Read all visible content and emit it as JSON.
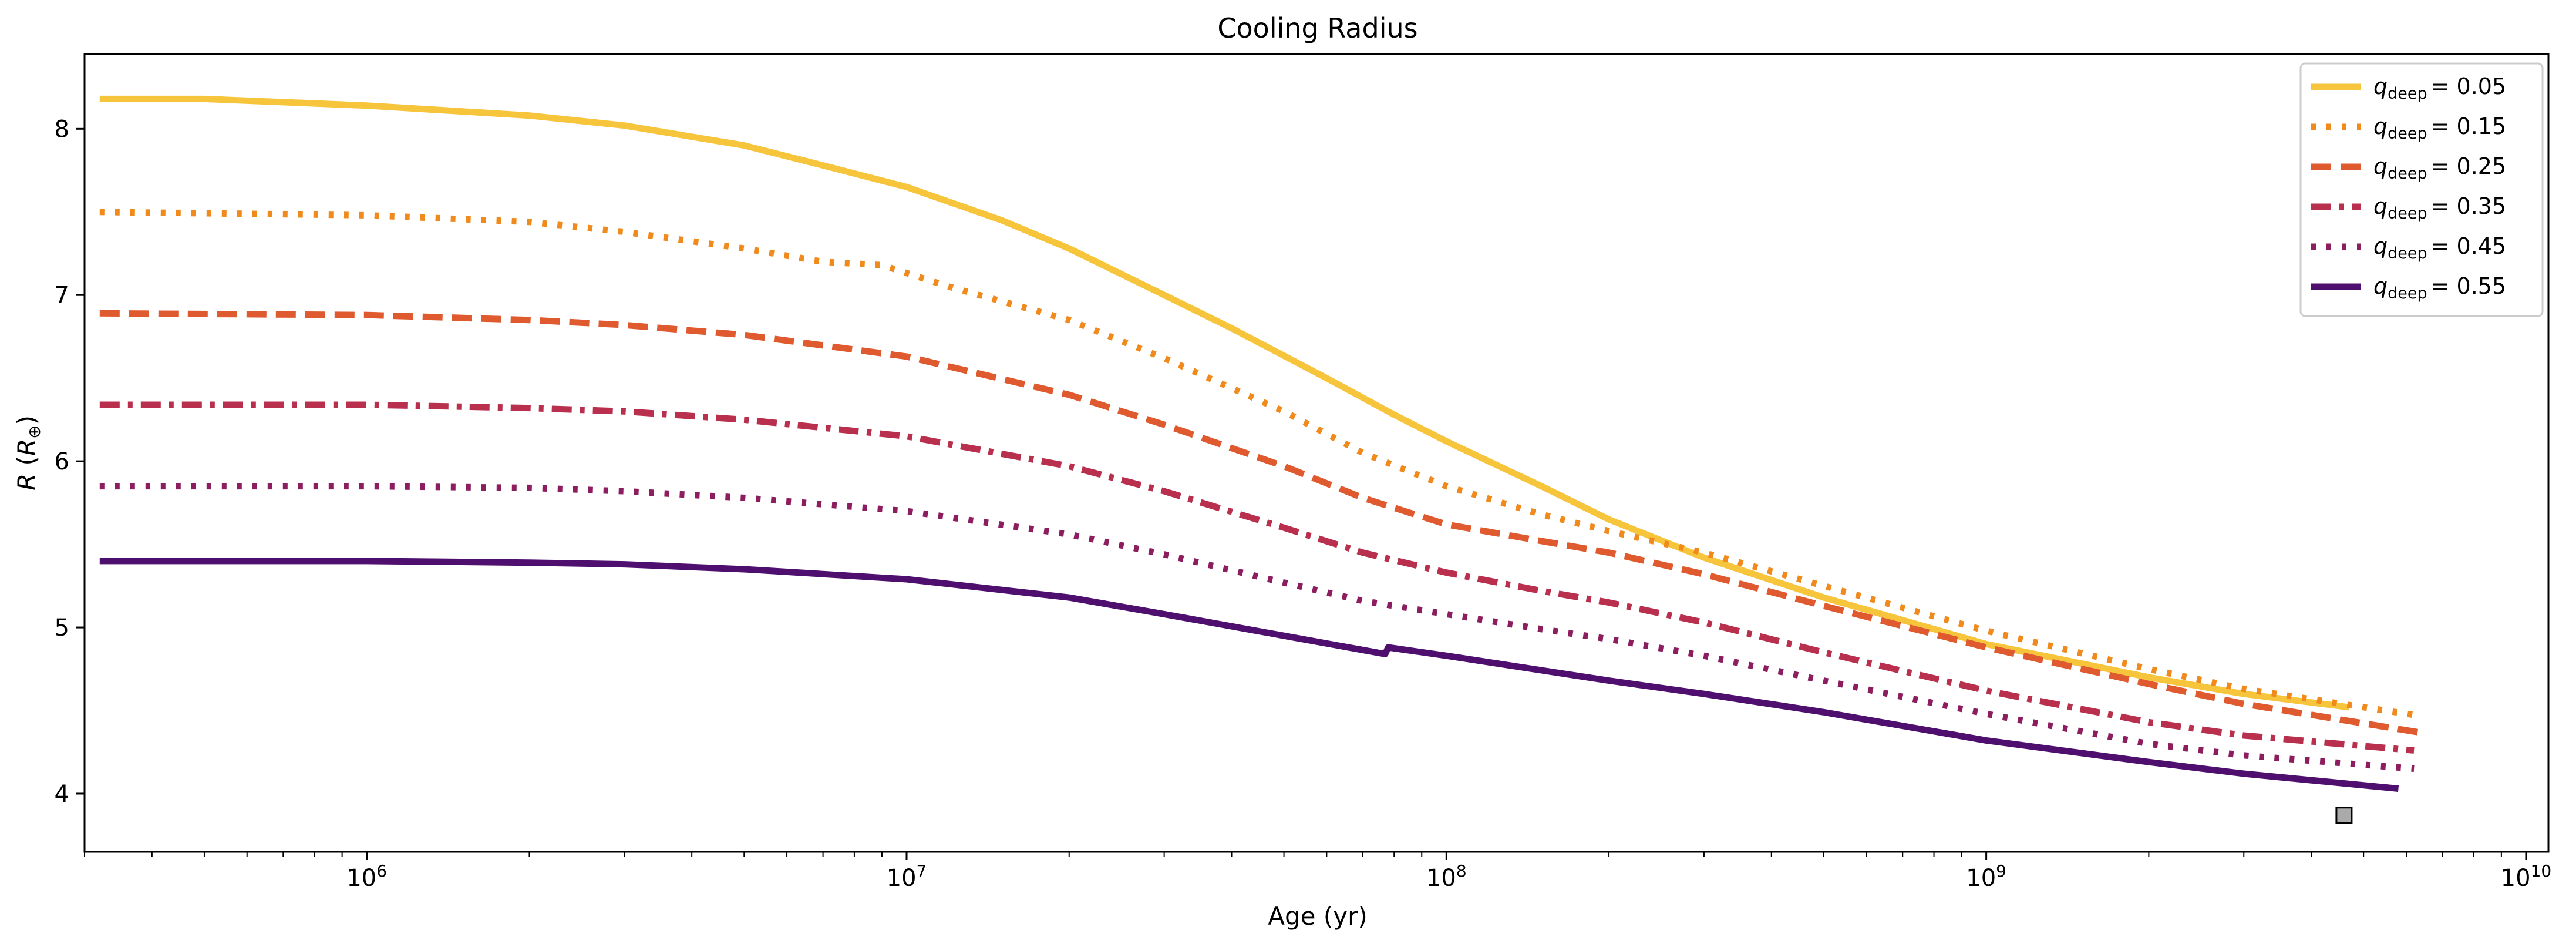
{
  "chart_data": {
    "type": "line",
    "title": "Cooling Radius",
    "xlabel": "Age (yr)",
    "ylabel": {
      "main": "R",
      "unit": "R",
      "unit_sub": "⊕"
    },
    "x_scale": "log",
    "xlim": [
      300000,
      11000000000
    ],
    "ylim": [
      3.65,
      8.45
    ],
    "x_ticks": [
      {
        "value": 1000000,
        "base": "10",
        "exp": "6"
      },
      {
        "value": 10000000,
        "base": "10",
        "exp": "7"
      },
      {
        "value": 100000000,
        "base": "10",
        "exp": "8"
      },
      {
        "value": 1000000000,
        "base": "10",
        "exp": "9"
      },
      {
        "value": 10000000000,
        "base": "10",
        "exp": "10"
      }
    ],
    "y_ticks": [
      {
        "value": 4,
        "label": "4"
      },
      {
        "value": 5,
        "label": "5"
      },
      {
        "value": 6,
        "label": "6"
      },
      {
        "value": 7,
        "label": "7"
      },
      {
        "value": 8,
        "label": "8"
      }
    ],
    "grid": false,
    "legend_position": "top-right",
    "series": [
      {
        "name": "q_deep = 0.05",
        "label_var": "q",
        "label_sub": "deep",
        "label_eq": "= 0.05",
        "color": "#f6c53c",
        "style": "solid",
        "x": [
          320000,
          500000,
          1000000,
          2000000,
          3000000,
          5000000,
          7000000,
          10000000,
          15000000,
          20000000,
          30000000,
          40000000,
          60000000,
          80000000,
          100000000,
          150000000,
          200000000,
          300000000,
          500000000,
          1000000000,
          2000000000,
          3000000000,
          4700000000
        ],
        "y": [
          8.18,
          8.18,
          8.14,
          8.08,
          8.02,
          7.9,
          7.78,
          7.65,
          7.45,
          7.28,
          7.0,
          6.8,
          6.5,
          6.28,
          6.12,
          5.85,
          5.65,
          5.42,
          5.18,
          4.9,
          4.7,
          4.6,
          4.52
        ]
      },
      {
        "name": "q_deep = 0.15",
        "label_var": "q",
        "label_sub": "deep",
        "label_eq": "= 0.15",
        "color": "#f18a1c",
        "style": "dotted",
        "x": [
          320000,
          1000000,
          2000000,
          3000000,
          5000000,
          7000000,
          9000000,
          12000000,
          20000000,
          30000000,
          50000000,
          70000000,
          100000000,
          150000000,
          200000000,
          300000000,
          500000000,
          1000000000,
          2000000000,
          3000000000,
          6300000000
        ],
        "y": [
          7.5,
          7.48,
          7.44,
          7.38,
          7.28,
          7.2,
          7.18,
          7.05,
          6.85,
          6.62,
          6.3,
          6.05,
          5.85,
          5.68,
          5.58,
          5.45,
          5.25,
          4.98,
          4.75,
          4.63,
          4.47
        ]
      },
      {
        "name": "q_deep = 0.25",
        "label_var": "q",
        "label_sub": "deep",
        "label_eq": "= 0.25",
        "color": "#e05a2f",
        "style": "dashed",
        "x": [
          320000,
          1000000,
          2000000,
          3000000,
          5000000,
          10000000,
          20000000,
          30000000,
          50000000,
          70000000,
          100000000,
          150000000,
          200000000,
          300000000,
          500000000,
          1000000000,
          2000000000,
          3000000000,
          6300000000
        ],
        "y": [
          6.89,
          6.88,
          6.85,
          6.82,
          6.76,
          6.63,
          6.4,
          6.22,
          5.97,
          5.78,
          5.62,
          5.52,
          5.45,
          5.32,
          5.13,
          4.88,
          4.66,
          4.54,
          4.37
        ]
      },
      {
        "name": "q_deep = 0.35",
        "label_var": "q",
        "label_sub": "deep",
        "label_eq": "= 0.35",
        "color": "#b8304e",
        "style": "dashdot",
        "x": [
          320000,
          1000000,
          2000000,
          3000000,
          5000000,
          10000000,
          20000000,
          30000000,
          50000000,
          70000000,
          100000000,
          150000000,
          200000000,
          300000000,
          500000000,
          1000000000,
          2000000000,
          3000000000,
          6200000000
        ],
        "y": [
          6.34,
          6.34,
          6.32,
          6.3,
          6.25,
          6.15,
          5.97,
          5.82,
          5.6,
          5.45,
          5.33,
          5.22,
          5.15,
          5.03,
          4.85,
          4.62,
          4.43,
          4.35,
          4.26
        ]
      },
      {
        "name": "q_deep = 0.45",
        "label_var": "q",
        "label_sub": "deep",
        "label_eq": "= 0.45",
        "color": "#8c1d5e",
        "style": "dotted",
        "x": [
          320000,
          1000000,
          2000000,
          3000000,
          5000000,
          10000000,
          20000000,
          30000000,
          50000000,
          70000000,
          100000000,
          150000000,
          200000000,
          300000000,
          500000000,
          1000000000,
          2000000000,
          3000000000,
          6200000000
        ],
        "y": [
          5.85,
          5.85,
          5.84,
          5.82,
          5.78,
          5.7,
          5.56,
          5.44,
          5.27,
          5.16,
          5.08,
          4.99,
          4.93,
          4.83,
          4.68,
          4.48,
          4.3,
          4.23,
          4.15
        ]
      },
      {
        "name": "q_deep = 0.55",
        "label_var": "q",
        "label_sub": "deep",
        "label_eq": "= 0.55",
        "color": "#4f0f6e",
        "style": "solid",
        "x": [
          320000,
          1000000,
          2000000,
          3000000,
          5000000,
          10000000,
          20000000,
          30000000,
          50000000,
          77000000,
          78000000,
          100000000,
          200000000,
          300000000,
          500000000,
          1000000000,
          2000000000,
          3000000000,
          5800000000
        ],
        "y": [
          5.4,
          5.4,
          5.39,
          5.38,
          5.35,
          5.29,
          5.18,
          5.08,
          4.95,
          4.84,
          4.88,
          4.83,
          4.68,
          4.6,
          4.49,
          4.32,
          4.19,
          4.12,
          4.03
        ]
      }
    ],
    "annotations": [
      {
        "type": "square-marker",
        "x": 4600000000,
        "y": 3.87,
        "color": "#aaaaaa"
      }
    ]
  }
}
